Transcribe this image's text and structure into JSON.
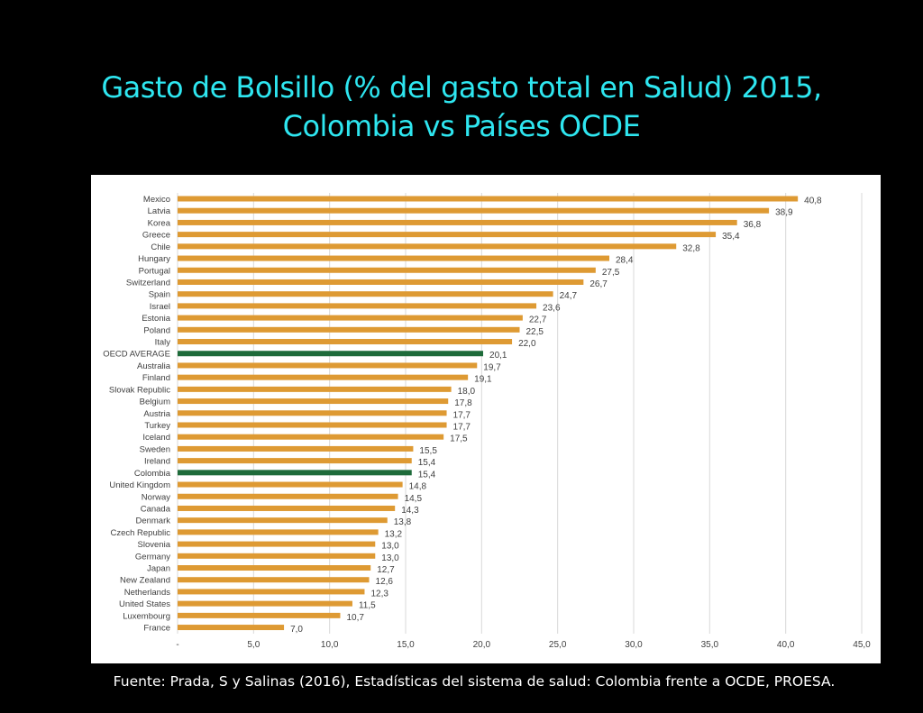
{
  "slide": {
    "title_line1": "Gasto de Bolsillo (% del gasto total en Salud) 2015,",
    "title_line2": "Colombia vs Países OCDE",
    "source": "Fuente: Prada, S y Salinas (2016), Estadísticas del sistema de salud: Colombia frente a OCDE, PROESA."
  },
  "chart_data": {
    "type": "bar",
    "orientation": "horizontal",
    "title": "",
    "xlabel": "",
    "ylabel": "",
    "xlim": [
      0,
      45
    ],
    "x_ticks": [
      "-",
      "5,0",
      "10,0",
      "15,0",
      "20,0",
      "25,0",
      "30,0",
      "35,0",
      "40,0",
      "45,0"
    ],
    "grid": true,
    "categories": [
      "Mexico",
      "Latvia",
      "Korea",
      "Greece",
      "Chile",
      "Hungary",
      "Portugal",
      "Switzerland",
      "Spain",
      "Israel",
      "Estonia",
      "Poland",
      "Italy",
      "OECD AVERAGE",
      "Australia",
      "Finland",
      "Slovak Republic",
      "Belgium",
      "Austria",
      "Turkey",
      "Iceland",
      "Sweden",
      "Ireland",
      "Colombia",
      "United Kingdom",
      "Norway",
      "Canada",
      "Denmark",
      "Czech Republic",
      "Slovenia",
      "Germany",
      "Japan",
      "New Zealand",
      "Netherlands",
      "United States",
      "Luxembourg",
      "France"
    ],
    "values": [
      40.8,
      38.9,
      36.8,
      35.4,
      32.8,
      28.4,
      27.5,
      26.7,
      24.7,
      23.6,
      22.7,
      22.5,
      22.0,
      20.1,
      19.7,
      19.1,
      18.0,
      17.8,
      17.7,
      17.7,
      17.5,
      15.5,
      15.4,
      15.4,
      14.8,
      14.5,
      14.3,
      13.8,
      13.2,
      13.0,
      13.0,
      12.7,
      12.6,
      12.3,
      11.5,
      10.7,
      7.0
    ],
    "value_labels": [
      "40,8",
      "38,9",
      "36,8",
      "35,4",
      "32,8",
      "28,4",
      "27,5",
      "26,7",
      "24,7",
      "23,6",
      "22,7",
      "22,5",
      "22,0",
      "20,1",
      "19,7",
      "19,1",
      "18,0",
      "17,8",
      "17,7",
      "17,7",
      "17,5",
      "15,5",
      "15,4",
      "15,4",
      "14,8",
      "14,5",
      "14,3",
      "13,8",
      "13,2",
      "13,0",
      "13,0",
      "12,7",
      "12,6",
      "12,3",
      "11,5",
      "10,7",
      "7,0"
    ],
    "highlight": [
      "OECD AVERAGE",
      "Colombia"
    ],
    "colors": {
      "bar": "#DE9A33",
      "highlight": "#1E6B3A",
      "grid": "#D9D9D9",
      "text": "#404040"
    }
  }
}
